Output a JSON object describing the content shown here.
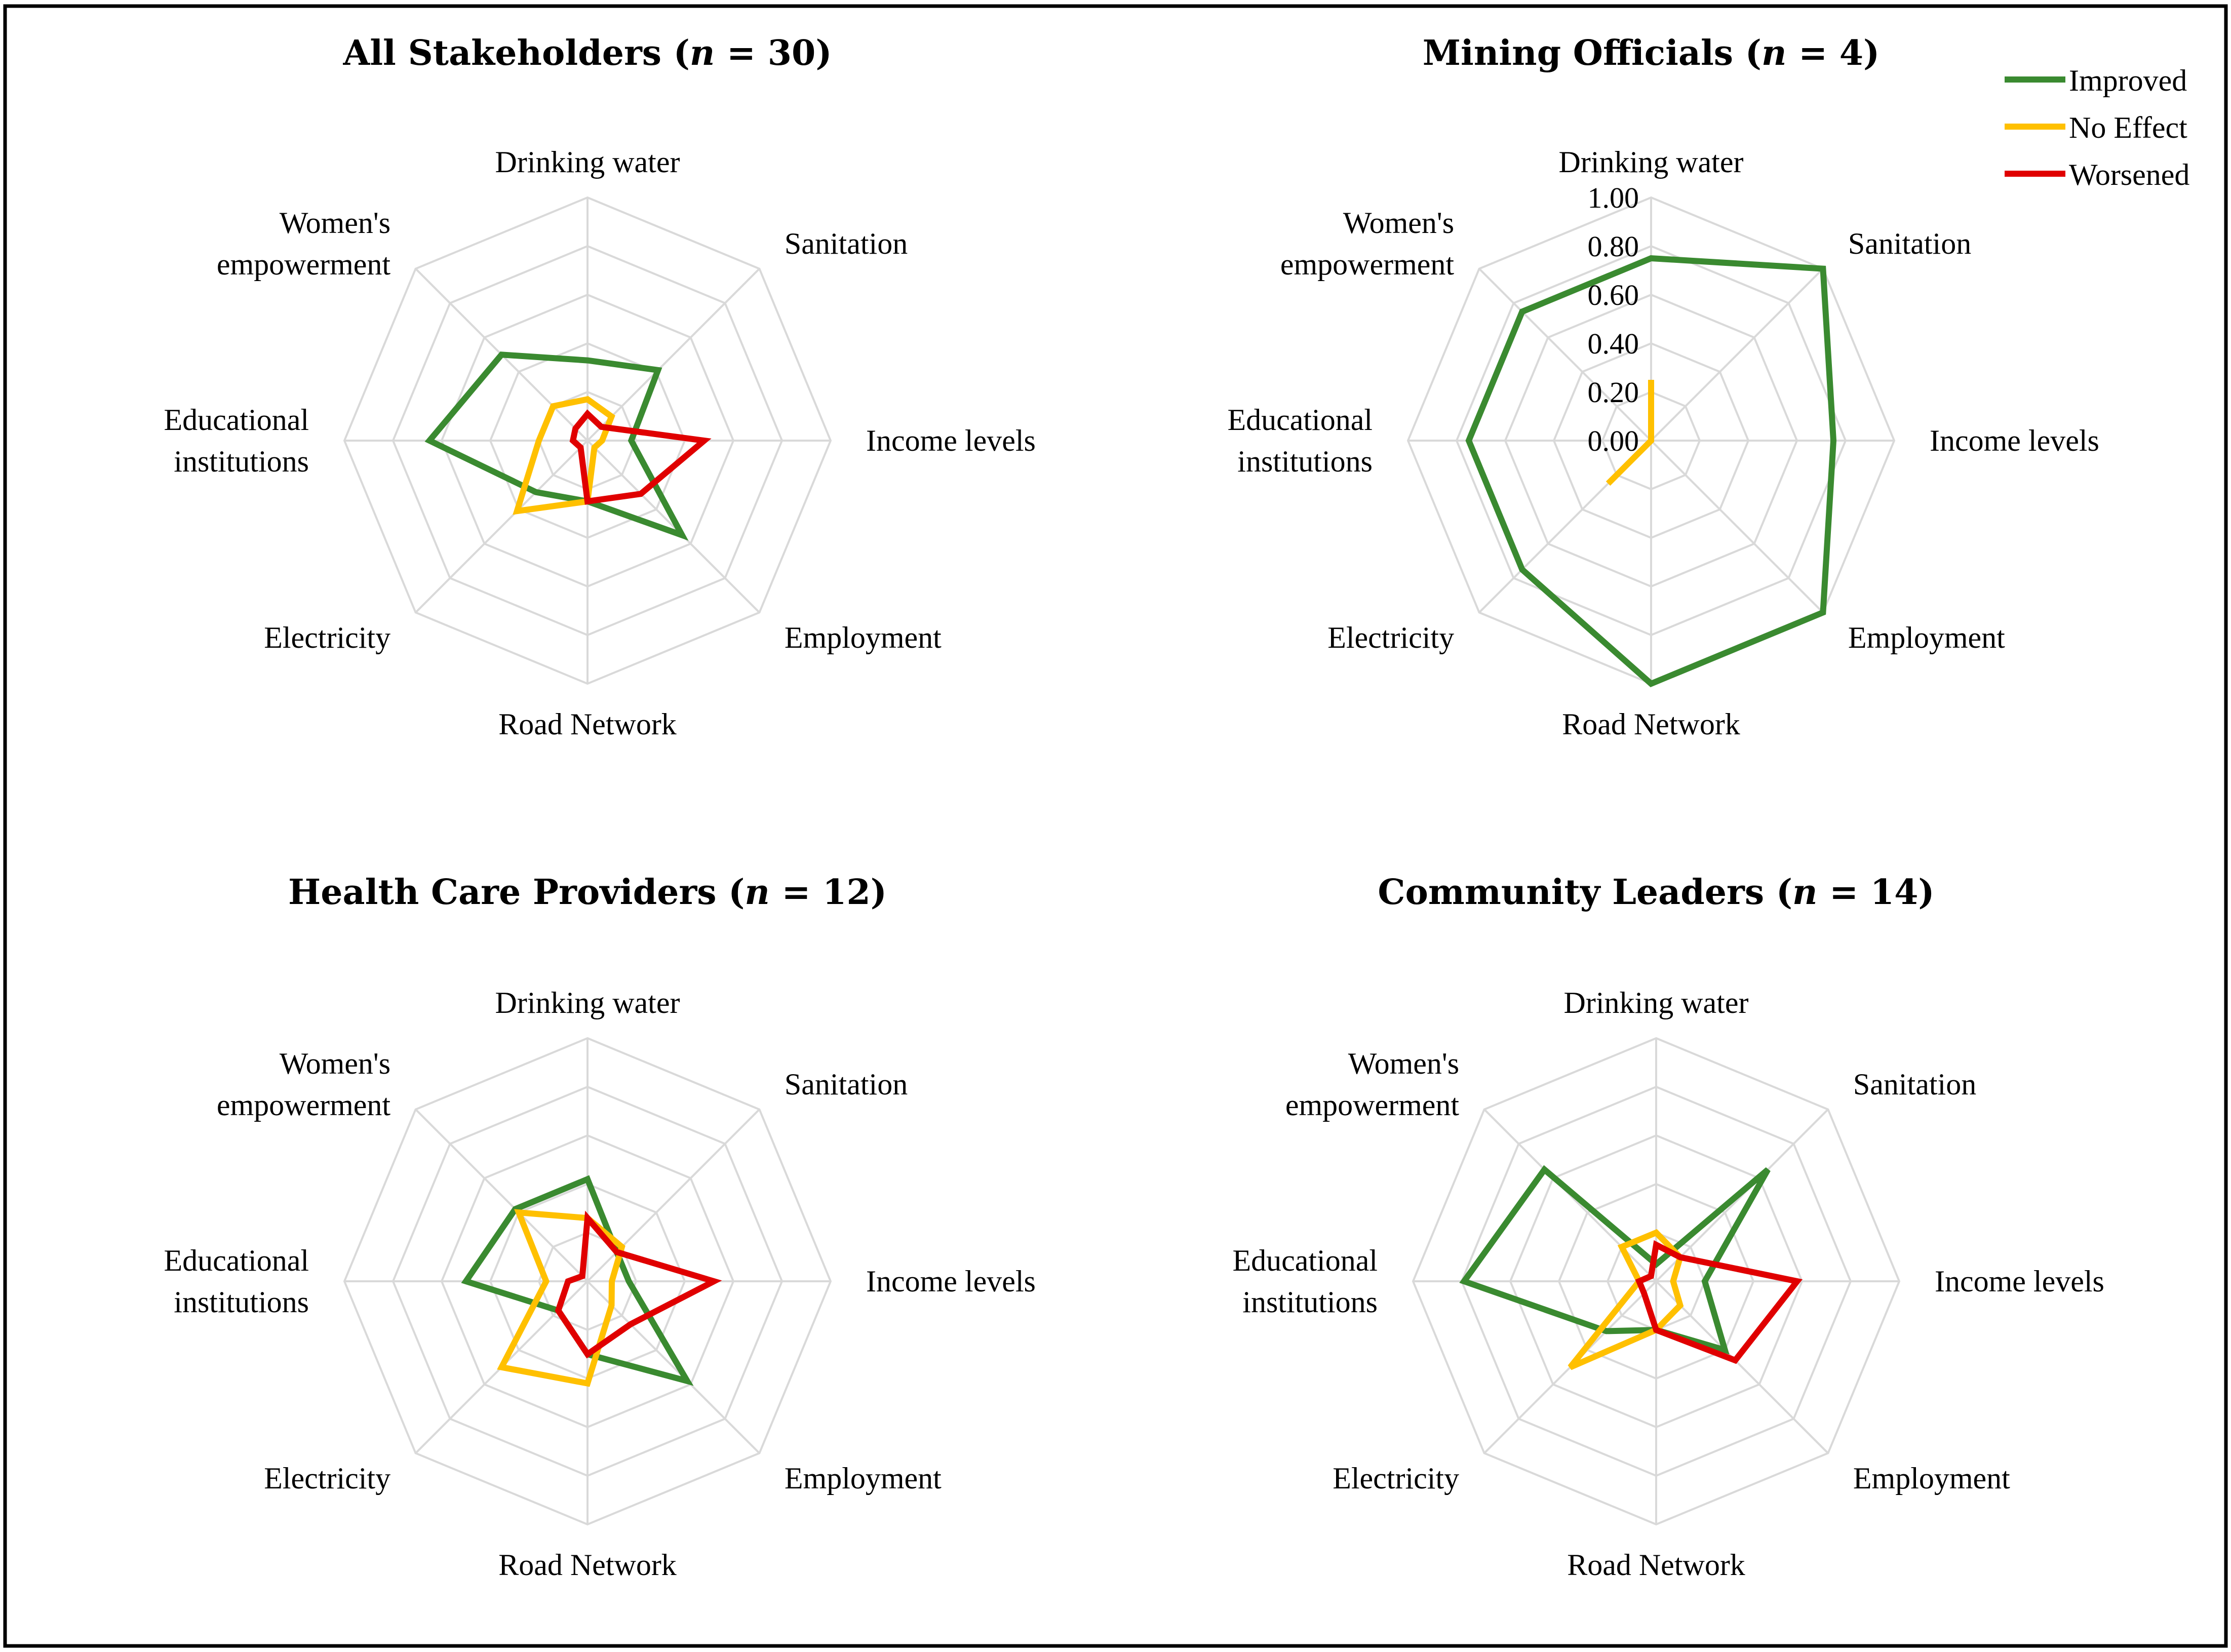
{
  "colors": {
    "improved": "#3a8a30",
    "no_effect": "#ffc000",
    "worsened": "#e00000",
    "grid": "#d9d9d9",
    "border": "#000000"
  },
  "legend": [
    {
      "name": "Improved",
      "color": "#3a8a30"
    },
    {
      "name": "No Effect",
      "color": "#ffc000"
    },
    {
      "name": "Worsened",
      "color": "#e00000"
    }
  ],
  "chart_data": [
    {
      "type": "radar",
      "title": "All Stakeholders",
      "n_label": "n",
      "n_value": "30",
      "categories": [
        "Drinking water",
        "Sanitation",
        "Income levels",
        "Employment",
        "Road Network",
        "Electricity",
        "Educational institutions",
        "Women's empowerment"
      ],
      "category_lines": [
        [
          "Drinking water"
        ],
        [
          "Sanitation"
        ],
        [
          "Income levels"
        ],
        [
          "Employment"
        ],
        [
          "Road Network"
        ],
        [
          "Electricity"
        ],
        [
          "Educational",
          "institutions"
        ],
        [
          "Women's",
          "empowerment"
        ]
      ],
      "rmax": 1.0,
      "show_ticks": false,
      "series": [
        {
          "name": "Improved",
          "values": [
            0.33,
            0.41,
            0.18,
            0.55,
            0.25,
            0.3,
            0.65,
            0.5
          ]
        },
        {
          "name": "No Effect",
          "values": [
            0.17,
            0.14,
            0.06,
            0.04,
            0.25,
            0.41,
            0.2,
            0.2
          ]
        },
        {
          "name": "Worsened",
          "values": [
            0.11,
            0.08,
            0.48,
            0.31,
            0.25,
            0.04,
            0.06,
            0.07
          ]
        }
      ]
    },
    {
      "type": "radar",
      "title": "Mining Officials",
      "n_label": "n",
      "n_value": "4",
      "categories": [
        "Drinking water",
        "Sanitation",
        "Income levels",
        "Employment",
        "Road Network",
        "Electricity",
        "Educational institutions",
        "Women's empowerment"
      ],
      "category_lines": [
        [
          "Drinking water"
        ],
        [
          "Sanitation"
        ],
        [
          "Income levels"
        ],
        [
          "Employment"
        ],
        [
          "Road Network"
        ],
        [
          "Electricity"
        ],
        [
          "Educational",
          "institutions"
        ],
        [
          "Women's",
          "empowerment"
        ]
      ],
      "rmax": 1.0,
      "show_ticks": true,
      "ticks": [
        "0.00",
        "0.20",
        "0.40",
        "0.60",
        "0.80",
        "1.00"
      ],
      "series": [
        {
          "name": "Improved",
          "values": [
            0.75,
            1.0,
            0.75,
            1.0,
            1.0,
            0.75,
            0.75,
            0.75
          ]
        },
        {
          "name": "No Effect",
          "values": [
            0.25,
            0.0,
            0.0,
            0.0,
            0.0,
            0.25,
            0.0,
            0.0
          ]
        },
        {
          "name": "Worsened",
          "values": [
            0.0,
            0.0,
            0.0,
            0.0,
            0.0,
            0.0,
            0.0,
            0.0
          ]
        }
      ]
    },
    {
      "type": "radar",
      "title": "Health Care Providers",
      "n_label": "n",
      "n_value": "12",
      "categories": [
        "Drinking water",
        "Sanitation",
        "Income levels",
        "Employment",
        "Road Network",
        "Electricity",
        "Educational institutions",
        "Women's empowerment"
      ],
      "category_lines": [
        [
          "Drinking water"
        ],
        [
          "Sanitation"
        ],
        [
          "Income levels"
        ],
        [
          "Employment"
        ],
        [
          "Road Network"
        ],
        [
          "Electricity"
        ],
        [
          "Educational",
          "institutions"
        ],
        [
          "Women's",
          "empowerment"
        ]
      ],
      "rmax": 1.0,
      "show_ticks": false,
      "series": [
        {
          "name": "Improved",
          "values": [
            0.42,
            0.17,
            0.17,
            0.58,
            0.3,
            0.17,
            0.5,
            0.42
          ]
        },
        {
          "name": "No Effect",
          "values": [
            0.26,
            0.2,
            0.1,
            0.14,
            0.42,
            0.5,
            0.17,
            0.4
          ]
        },
        {
          "name": "Worsened",
          "values": [
            0.26,
            0.17,
            0.52,
            0.25,
            0.3,
            0.17,
            0.08,
            0.03
          ]
        }
      ]
    },
    {
      "type": "radar",
      "title": "Community Leaders",
      "n_label": "n",
      "n_value": "14",
      "categories": [
        "Drinking water",
        "Sanitation",
        "Income levels",
        "Employment",
        "Road Network",
        "Electricity",
        "Educational institutions",
        "Women's empowerment"
      ],
      "category_lines": [
        [
          "Drinking water"
        ],
        [
          "Sanitation"
        ],
        [
          "Income levels"
        ],
        [
          "Employment"
        ],
        [
          "Road Network"
        ],
        [
          "Electricity"
        ],
        [
          "Educational",
          "institutions"
        ],
        [
          "Women's",
          "empowerment"
        ]
      ],
      "rmax": 1.0,
      "show_ticks": false,
      "series": [
        {
          "name": "Improved",
          "values": [
            0.07,
            0.65,
            0.2,
            0.4,
            0.2,
            0.29,
            0.79,
            0.65
          ]
        },
        {
          "name": "No Effect",
          "values": [
            0.2,
            0.14,
            0.07,
            0.14,
            0.2,
            0.5,
            0.07,
            0.2
          ]
        },
        {
          "name": "Worsened",
          "values": [
            0.15,
            0.14,
            0.58,
            0.46,
            0.2,
            0.07,
            0.07,
            0.03
          ]
        }
      ]
    }
  ]
}
